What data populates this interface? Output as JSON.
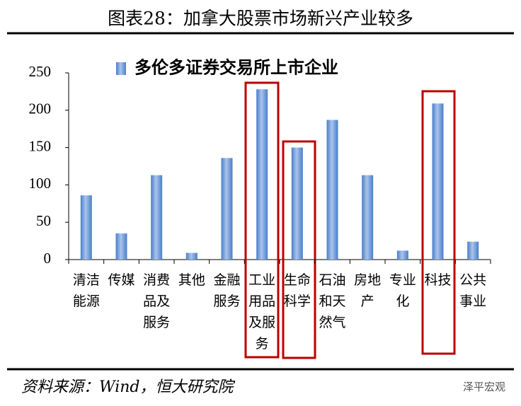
{
  "chart_data": {
    "type": "bar",
    "title": "图表28：加拿大股票市场新兴产业较多",
    "legend": "多伦多证券交易所上市企业",
    "source": "资料来源：Wind，恒大研究院",
    "watermark": "泽平宏观",
    "categories": [
      "清洁能源",
      "传媒",
      "消费品及服务",
      "其他",
      "金融服务",
      "工业用品及服务",
      "生命科学",
      "石油和天然气",
      "房地产",
      "专业化",
      "科技",
      "公共事业"
    ],
    "values": [
      86,
      35,
      113,
      9,
      136,
      228,
      150,
      187,
      113,
      12,
      209,
      24
    ],
    "color": "#4a7ec9",
    "ylim": [
      0,
      250
    ],
    "yticks": [
      0,
      50,
      100,
      150,
      200,
      250
    ]
  }
}
